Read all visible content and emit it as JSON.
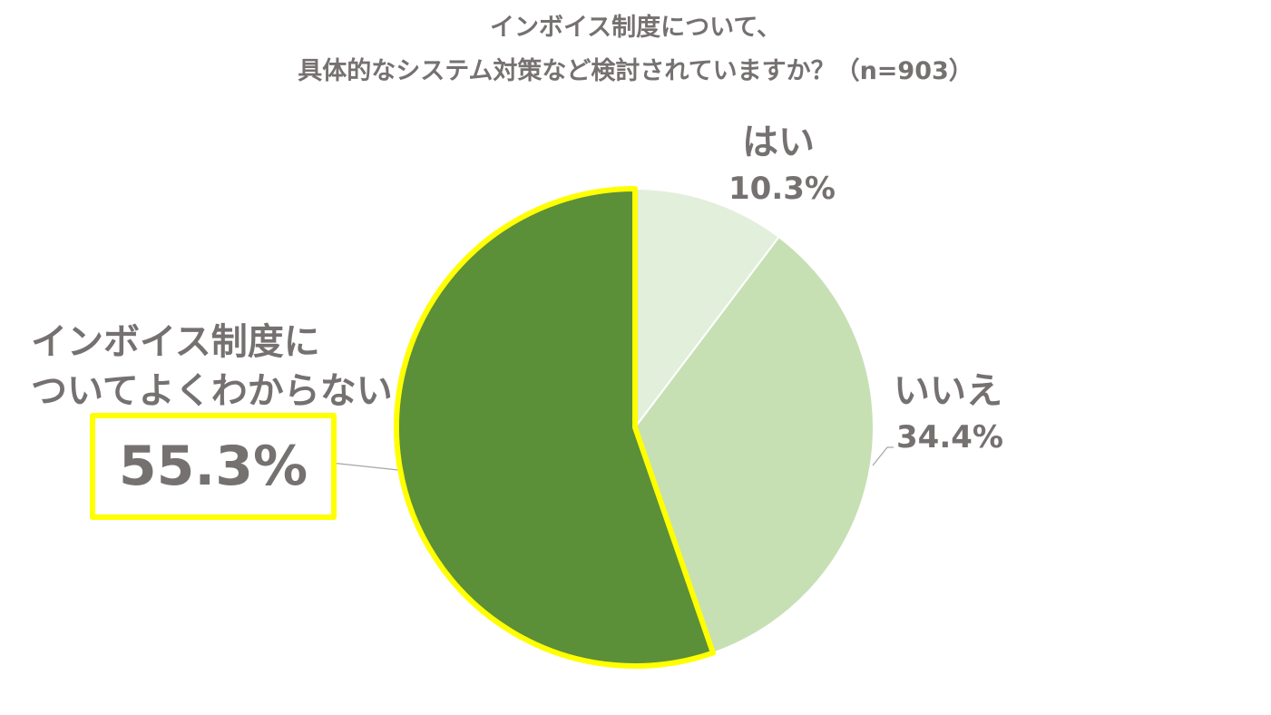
{
  "title": {
    "line1": "インボイス制度について、",
    "line2": "具体的なシステム対策など検討されていますか？（n=903）"
  },
  "labels": {
    "hai": {
      "name": "はい",
      "pct": "10.3%"
    },
    "iie": {
      "name": "いいえ",
      "pct": "34.4%"
    },
    "wakaranai": {
      "line1": "インボイス制度に",
      "line2": "ついてよくわからない",
      "pct": "55.3%"
    }
  },
  "colors": {
    "hai": "#e2efda",
    "iie": "#c6e0b4",
    "wakaranai": "#5b8f38",
    "highlight": "#ffff00",
    "text": "#767171",
    "leader": "#a6a6a6"
  },
  "chart_data": {
    "type": "pie",
    "title": "インボイス制度について、具体的なシステム対策など検討されていますか？（n=903）",
    "n": 903,
    "categories": [
      "はい",
      "いいえ",
      "インボイス制度についてよくわからない"
    ],
    "values": [
      10.3,
      34.4,
      55.3
    ],
    "unit": "%",
    "start_angle": "12 o'clock",
    "direction": "clockwise",
    "highlighted": "インボイス制度についてよくわからない",
    "legend": "none (data labels outside slices)"
  }
}
